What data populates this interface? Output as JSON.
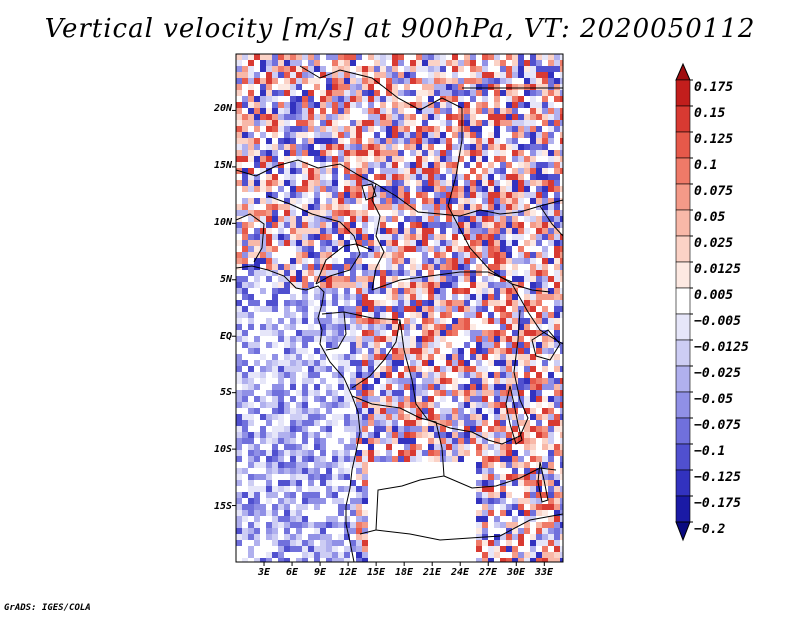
{
  "title": "Vertical velocity [m/s] at 900hPa, VT: 2020050112",
  "credit": "GrADS: IGES/COLA",
  "chart_data": {
    "type": "heatmap",
    "variable": "Vertical velocity",
    "units": "m/s",
    "level": "900hPa",
    "valid_time": "2020050112",
    "lon_range": [
      0,
      35
    ],
    "lat_range": [
      -20,
      25
    ],
    "lon_ticks": [
      3,
      6,
      9,
      12,
      15,
      18,
      21,
      24,
      27,
      30,
      33
    ],
    "lon_tick_labels": [
      "3E",
      "6E",
      "9E",
      "12E",
      "15E",
      "18E",
      "21E",
      "24E",
      "27E",
      "30E",
      "33E"
    ],
    "lat_ticks": [
      20,
      15,
      10,
      5,
      0,
      -5,
      -10,
      -15
    ],
    "lat_tick_labels": [
      "20N",
      "15N",
      "10N",
      "5N",
      "EQ",
      "5S",
      "10S",
      "15S"
    ],
    "colorbar_levels": [
      0.175,
      0.15,
      0.125,
      0.1,
      0.075,
      0.05,
      0.025,
      0.0125,
      0.005,
      -0.005,
      -0.0125,
      -0.025,
      -0.05,
      -0.075,
      -0.1,
      -0.125,
      -0.175,
      -0.2
    ],
    "colorbar_labels": [
      "0.175",
      "0.15",
      "0.125",
      "0.1",
      "0.075",
      "0.05",
      "0.025",
      "0.0125",
      "0.005",
      "−0.005",
      "−0.0125",
      "−0.025",
      "−0.05",
      "−0.075",
      "−0.1",
      "−0.125",
      "−0.175",
      "−0.2"
    ],
    "colorbar_colors": [
      "#a00e10",
      "#c21e1c",
      "#d83a32",
      "#e6594a",
      "#ef7a68",
      "#f49a88",
      "#f8b8a8",
      "#fbd2c6",
      "#fde9e2",
      "#ffffff",
      "#e6e6f9",
      "#cdcdf4",
      "#b0b0ee",
      "#9090e6",
      "#7070dc",
      "#5050cf",
      "#3232bf",
      "#1a1aa5",
      "#0a0a80"
    ]
  }
}
